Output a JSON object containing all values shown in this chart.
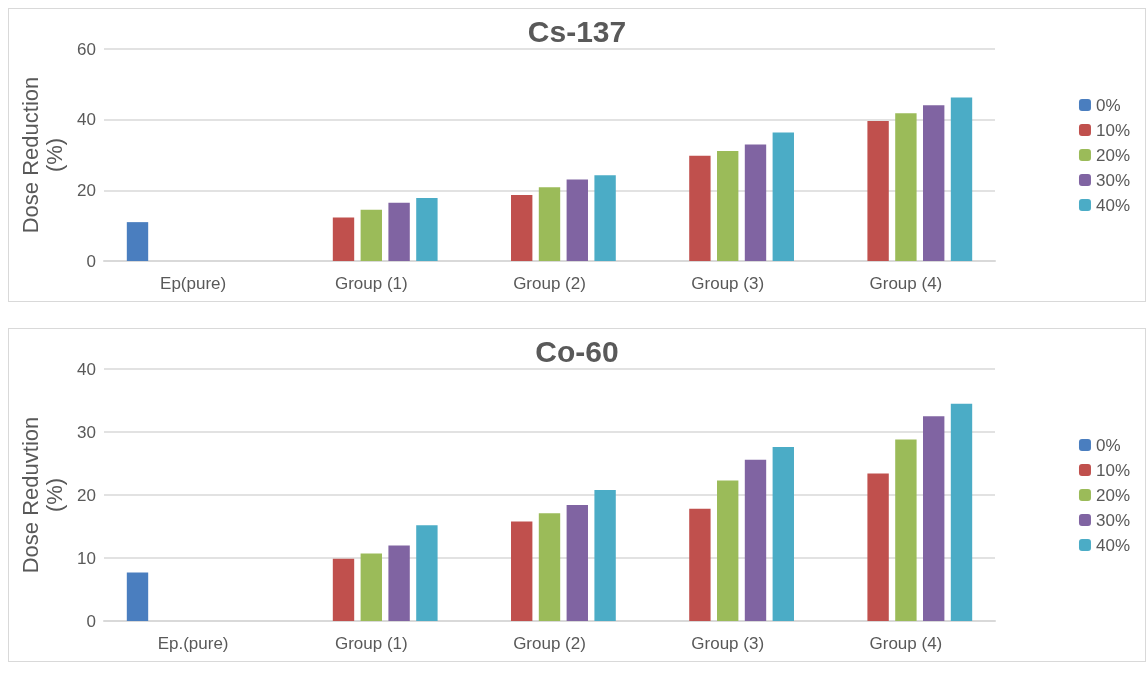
{
  "chart_data": [
    {
      "type": "bar",
      "title": "Cs-137",
      "ylabel": "Dose Reduction (%)",
      "categories": [
        "Ep(pure)",
        "Group (1)",
        "Group (2)",
        "Group (3)",
        "Group (4)"
      ],
      "series": [
        {
          "name": "0%",
          "color": "#4a7ebf",
          "values": [
            11,
            null,
            null,
            null,
            null
          ]
        },
        {
          "name": "10%",
          "color": "#c0504d",
          "values": [
            null,
            12.3,
            18.7,
            29.8,
            39.6
          ]
        },
        {
          "name": "20%",
          "color": "#9bbb59",
          "values": [
            null,
            14.5,
            20.9,
            31.1,
            41.8
          ]
        },
        {
          "name": "30%",
          "color": "#8064a2",
          "values": [
            null,
            16.5,
            23.1,
            33,
            44.1
          ]
        },
        {
          "name": "40%",
          "color": "#4bacc6",
          "values": [
            null,
            17.8,
            24.3,
            36.4,
            46.3
          ]
        }
      ],
      "ylim": [
        0,
        60
      ],
      "yticks": [
        0,
        20,
        40,
        60
      ],
      "grid": "y",
      "legend": "right"
    },
    {
      "type": "bar",
      "title": "Co-60",
      "ylabel": "Dose Reduvtion (%)",
      "categories": [
        "Ep.(pure)",
        "Group (1)",
        "Group (2)",
        "Group (3)",
        "Group (4)"
      ],
      "series": [
        {
          "name": "0%",
          "color": "#4a7ebf",
          "values": [
            7.7,
            null,
            null,
            null,
            null
          ]
        },
        {
          "name": "10%",
          "color": "#c0504d",
          "values": [
            null,
            9.9,
            15.8,
            17.8,
            23.4
          ]
        },
        {
          "name": "20%",
          "color": "#9bbb59",
          "values": [
            null,
            10.7,
            17.1,
            22.3,
            28.8
          ]
        },
        {
          "name": "30%",
          "color": "#8064a2",
          "values": [
            null,
            12,
            18.4,
            25.6,
            32.5
          ]
        },
        {
          "name": "40%",
          "color": "#4bacc6",
          "values": [
            null,
            15.2,
            20.8,
            27.6,
            34.5
          ]
        }
      ],
      "ylim": [
        0,
        40
      ],
      "yticks": [
        0,
        10,
        20,
        30,
        40
      ],
      "grid": "y",
      "legend": "right"
    }
  ]
}
